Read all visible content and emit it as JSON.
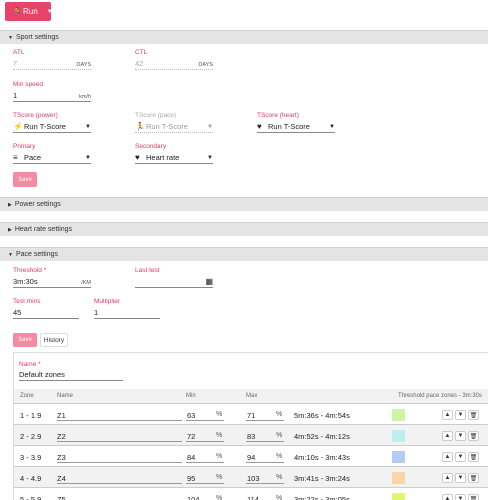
{
  "toolbar": {
    "run_label": "Run"
  },
  "sections": {
    "sport": "Sport settings",
    "power": "Power settings",
    "heart_rate": "Heart rate settings",
    "pace": "Pace settings"
  },
  "sport": {
    "atl": {
      "label": "ATL",
      "value": "7",
      "unit": "DAYS"
    },
    "ctl": {
      "label": "CTL",
      "value": "42",
      "unit": "DAYS"
    },
    "min_speed": {
      "label": "Min speed",
      "value": "1",
      "unit": "km/h"
    },
    "tscore_power": {
      "label": "TScore (power)",
      "value": "Run T-Score"
    },
    "tscore_pace": {
      "label": "TScore (pace)",
      "value": "Run T-Score"
    },
    "tscore_heart": {
      "label": "TScore (heart)",
      "value": "Run T-Score"
    },
    "primary": {
      "label": "Primary",
      "value": "Pace"
    },
    "secondary": {
      "label": "Secondary",
      "value": "Heart rate"
    },
    "save_label": "Save"
  },
  "pace": {
    "threshold": {
      "label": "Threshold *",
      "value": "3m:30s",
      "unit": "/KM"
    },
    "last_test": {
      "label": "Last test",
      "value": ""
    },
    "test_mins": {
      "label": "Test mins",
      "value": "45"
    },
    "multiplier": {
      "label": "Multiplier",
      "value": "1"
    },
    "save_label": "Save",
    "history_label": "History"
  },
  "zones": {
    "name_label": "Name *",
    "name_value": "Default zones",
    "headers": {
      "zone": "Zone",
      "name": "Name",
      "min": "Min",
      "max": "Max",
      "threshold": "Threshold pace zones - 3m:30s"
    },
    "pct_symbol": "%",
    "rows": [
      {
        "zone": "1 - 1.9",
        "name": "Z1",
        "min": "63",
        "max": "71",
        "range": "5m:36s - 4m:54s",
        "color": "#ccf5a8"
      },
      {
        "zone": "2 - 2.9",
        "name": "Z2",
        "min": "72",
        "max": "83",
        "range": "4m:52s - 4m:12s",
        "color": "#bdeef0"
      },
      {
        "zone": "3 - 3.9",
        "name": "Z3",
        "min": "84",
        "max": "94",
        "range": "4m:10s - 3m:43s",
        "color": "#b5cdf5"
      },
      {
        "zone": "4 - 4.9",
        "name": "Z4",
        "min": "95",
        "max": "103",
        "range": "3m:41s - 3m:24s",
        "color": "#fbd4a8"
      },
      {
        "zone": "5 - 5.9",
        "name": "Z5",
        "min": "104",
        "max": "114",
        "range": "3m:22s - 3m:05s",
        "color": "#e0f570"
      }
    ]
  }
}
